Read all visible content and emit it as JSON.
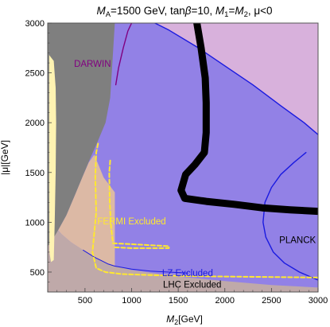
{
  "chart_data": {
    "type": "area",
    "title": "M_A=1500 GeV, tanβ=10, M_1=M_2, μ<0",
    "title_parts": {
      "ma_sym": "M",
      "ma_sub": "A",
      "ma_val": "=1500 GeV, tan",
      "beta": "β",
      "tb_val": "=10, ",
      "m1_sym": "M",
      "m1_sub": "1",
      "eq": "=",
      "m2_sym": "M",
      "m2_sub": "2",
      "mu_part": ", μ<0"
    },
    "xlabel": "M_2[GeV]",
    "xlabel_parts": {
      "sym": "M",
      "sub": "2",
      "unit": "[GeV]"
    },
    "ylabel": "|μ|[GeV]",
    "xlim": [
      100,
      3000
    ],
    "ylim": [
      300,
      3000
    ],
    "x_ticks": [
      500,
      1000,
      1500,
      2000,
      2500,
      3000
    ],
    "x_tick_labels": [
      "500",
      "1000",
      "1500",
      "2000",
      "2500",
      "3000"
    ],
    "y_ticks": [
      500,
      1000,
      1500,
      2000,
      2500,
      3000
    ],
    "y_tick_labels": [
      "500",
      "1000",
      "1500",
      "2000",
      "2500",
      "3000"
    ],
    "grid": false,
    "colors": {
      "background": "#ffffff",
      "lz_region": "#9281e6",
      "pink_region": "#d8b1dc",
      "lhc_region": "#bfa9a9",
      "tan_region": "#dcb9a5",
      "gray_region": "#7f7f7f",
      "yellow_region": "#fff3b2",
      "lz_line": "#1a1ae0",
      "darwin_line": "#800080",
      "fermi_line": "#ffe830",
      "planck_line": "#000000"
    },
    "regions": [
      {
        "name": "LZ Excluded",
        "label": "LZ Excluded",
        "label_position": [
          1600,
          460
        ],
        "label_color": "#1a1ae0",
        "boundary": [
          [
            100,
            300
          ],
          [
            3000,
            300
          ],
          [
            3000,
            1880
          ],
          [
            2850,
            2000
          ],
          [
            2600,
            2170
          ],
          [
            2300,
            2380
          ],
          [
            2000,
            2570
          ],
          [
            1700,
            2760
          ],
          [
            1400,
            2930
          ],
          [
            1250,
            3000
          ],
          [
            100,
            3000
          ]
        ]
      },
      {
        "name": "LHC Excluded",
        "label": "LHC Excluded",
        "label_position": [
          1650,
          345
        ],
        "label_color": "#000000",
        "boundary": [
          [
            100,
            300
          ],
          [
            3000,
            300
          ],
          [
            3000,
            345
          ],
          [
            2500,
            370
          ],
          [
            2000,
            410
          ],
          [
            1500,
            455
          ],
          [
            1000,
            520
          ],
          [
            750,
            580
          ],
          [
            600,
            650
          ],
          [
            480,
            720
          ],
          [
            350,
            800
          ],
          [
            250,
            880
          ],
          [
            150,
            970
          ],
          [
            100,
            1030
          ]
        ]
      },
      {
        "name": "gray-excluded",
        "boundary": [
          [
            100,
            3000
          ],
          [
            820,
            3000
          ],
          [
            770,
            2250
          ],
          [
            720,
            2000
          ],
          [
            640,
            1820
          ],
          [
            560,
            1650
          ],
          [
            470,
            1450
          ],
          [
            390,
            1270
          ],
          [
            300,
            1070
          ],
          [
            200,
            900
          ],
          [
            120,
            780
          ],
          [
            100,
            760
          ]
        ]
      },
      {
        "name": "yellow-region",
        "boundary": [
          [
            115,
            2680
          ],
          [
            165,
            2620
          ],
          [
            185,
            2350
          ],
          [
            190,
            2000
          ],
          [
            185,
            1500
          ],
          [
            175,
            1000
          ],
          [
            165,
            620
          ],
          [
            135,
            600
          ],
          [
            118,
            700
          ],
          [
            115,
            1500
          ]
        ]
      },
      {
        "name": "tan-region",
        "boundary": [
          [
            100,
            1030
          ],
          [
            250,
            880
          ],
          [
            350,
            800
          ],
          [
            480,
            720
          ],
          [
            600,
            650
          ],
          [
            750,
            580
          ],
          [
            820,
            560
          ],
          [
            820,
            1300
          ],
          [
            700,
            1450
          ],
          [
            600,
            1680
          ],
          [
            540,
            1600
          ],
          [
            470,
            1450
          ],
          [
            390,
            1270
          ],
          [
            300,
            1070
          ],
          [
            200,
            900
          ],
          [
            120,
            780
          ],
          [
            100,
            760
          ]
        ]
      }
    ],
    "series": [
      {
        "name": "DARWIN",
        "label": "DARWIN",
        "label_position": [
          580,
          2560
        ],
        "color": "#800080",
        "x": [
          830,
          860,
          910,
          960,
          1000
        ],
        "y": [
          2380,
          2550,
          2750,
          2920,
          3000
        ]
      },
      {
        "name": "LZ",
        "color": "#1a1ae0",
        "x": [
          3000,
          2850,
          2600,
          2300,
          2000,
          1700,
          1400,
          1250
        ],
        "y": [
          1880,
          2000,
          2170,
          2380,
          2570,
          2760,
          2930,
          3000
        ]
      },
      {
        "name": "LZ-lower",
        "color": "#1a1ae0",
        "x": [
          480,
          600,
          750,
          820,
          1000,
          1200,
          1400,
          1600
        ],
        "y": [
          720,
          650,
          580,
          560,
          530,
          510,
          500,
          490
        ]
      },
      {
        "name": "PLANCK",
        "label": "PLANCK",
        "label_position": [
          2780,
          790
        ],
        "color": "#000000",
        "x": [
          1700,
          1745,
          1790,
          1800,
          1800,
          1780,
          1680,
          1580,
          1530,
          1570,
          1800,
          2100,
          2400,
          2700,
          3000
        ],
        "y": [
          3000,
          2750,
          2450,
          2200,
          1900,
          1700,
          1580,
          1480,
          1320,
          1240,
          1210,
          1180,
          1145,
          1125,
          1110
        ]
      },
      {
        "name": "PLANCK-right",
        "color": "#1a1ae0",
        "x": [
          2870,
          2740,
          2600,
          2500,
          2430,
          2410,
          2440,
          2520,
          2640,
          2800,
          2950,
          3000
        ],
        "y": [
          1700,
          1600,
          1480,
          1350,
          1200,
          1000,
          850,
          700,
          590,
          500,
          440,
          420
        ]
      },
      {
        "name": "FERMI",
        "label": "FERMI Excluded",
        "label_position": [
          1000,
          980
        ],
        "color": "#ffe830",
        "x": [
          640,
          620,
          610,
          620,
          600,
          580,
          620,
          720,
          900,
          1200,
          1600,
          2000,
          2500,
          3000
        ],
        "y": [
          1790,
          1700,
          1450,
          1100,
          900,
          700,
          540,
          500,
          480,
          470,
          460,
          455,
          450,
          445
        ]
      },
      {
        "name": "FERMI-inner",
        "color": "#ffe830",
        "x": [
          770,
          760,
          765,
          780,
          800,
          1000,
          1200,
          1400,
          1400,
          1200,
          1000,
          800
        ],
        "y": [
          1620,
          1500,
          1200,
          950,
          790,
          780,
          770,
          760,
          740,
          740,
          740,
          750
        ]
      }
    ]
  }
}
